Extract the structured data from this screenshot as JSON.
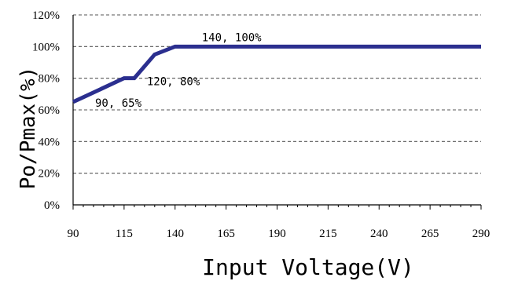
{
  "chart_data": {
    "type": "line",
    "title": "",
    "xlabel": "Input Voltage(V)",
    "ylabel": "Po/Pmax(%)",
    "xlim": [
      90,
      290
    ],
    "ylim": [
      0,
      120
    ],
    "x_ticks": [
      "90",
      "115",
      "140",
      "165",
      "190",
      "215",
      "240",
      "265",
      "290"
    ],
    "y_ticks": [
      "0%",
      "20%",
      "40%",
      "60%",
      "80%",
      "100%",
      "120%"
    ],
    "grid": true,
    "series": [
      {
        "x": [
          90,
          115,
          120,
          130,
          140,
          290
        ],
        "y": [
          65,
          80,
          80,
          95,
          100,
          100
        ],
        "color": "#2b2f8f"
      }
    ],
    "annotations": [
      {
        "text": "90, 65%",
        "x": 90,
        "y": 65
      },
      {
        "text": "120, 80%",
        "x": 120,
        "y": 80
      },
      {
        "text": "140, 100%",
        "x": 140,
        "y": 100
      }
    ]
  }
}
